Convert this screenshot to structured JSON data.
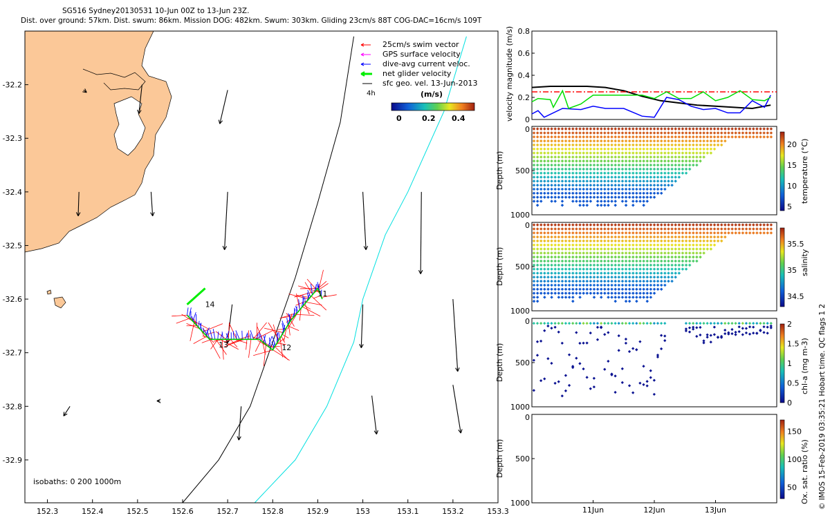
{
  "header": {
    "line1": "SG516 Sydney20130531 10-Jun 00Z to 13-Jun 23Z.",
    "line2": "Dist. over ground: 57km. Dist. swum: 86km. Mission DOG: 482km. Swum: 303km. Gliding 23cm/s 88T COG-DAC=16cm/s 109T"
  },
  "side_note": "© IMOS 15-Feb-2019 03:35:21 Hobart time. QC flags 1  2",
  "colors": {
    "land": "#fbc898",
    "swim": "#ff0000",
    "gps": "#ff00ff",
    "dac": "#0000ff",
    "net": "#00ee00",
    "geo": "#000000",
    "isobath200": "#000000",
    "isobath1000": "#00e0e0"
  },
  "chart_data": [
    {
      "type": "map",
      "xlim": [
        152.25,
        153.3
      ],
      "ylim": [
        -32.98,
        -32.1
      ],
      "xticks": [
        152.3,
        152.4,
        152.5,
        152.6,
        152.7,
        152.8,
        152.9,
        153,
        153.1,
        153.2,
        153.3
      ],
      "xtick_labels": [
        "152.3",
        "152.4",
        "152.5",
        "152.6",
        "152.7",
        "152.8",
        "152.9",
        "153",
        "153.1",
        "153.2",
        "153.3"
      ],
      "yticks": [
        -32.2,
        -32.3,
        -32.4,
        -32.5,
        -32.6,
        -32.7,
        -32.8,
        -32.9
      ],
      "ytick_labels": [
        "-32.2",
        "-32.3",
        "-32.4",
        "-32.5",
        "-32.6",
        "-32.7",
        "-32.8",
        "-32.9"
      ],
      "legend": [
        "25cm/s swim vector",
        "GPS surface velocity",
        "dive-avg current veloc.",
        "net glider velocity",
        "sfc geo. vel. 13-Jun-2013"
      ],
      "legend_extra": "4h",
      "colorbar": {
        "label": "(m/s)",
        "ticks": [
          "0",
          "0.2",
          "0.4"
        ],
        "range": [
          0,
          0.5
        ]
      },
      "isobath_note": "isobaths: 0   200  1000m",
      "track_labels": [
        "14",
        "13",
        "12",
        "11"
      ],
      "track": [
        [
          152.61,
          -32.63
        ],
        [
          152.66,
          -32.675
        ],
        [
          152.72,
          -32.675
        ],
        [
          152.77,
          -32.675
        ],
        [
          152.8,
          -32.695
        ],
        [
          152.84,
          -32.64
        ],
        [
          152.88,
          -32.6
        ],
        [
          152.9,
          -32.58
        ],
        [
          152.91,
          -32.6
        ]
      ],
      "isobath_200": [
        [
          152.98,
          -32.11
        ],
        [
          152.95,
          -32.27
        ],
        [
          152.9,
          -32.42
        ],
        [
          152.85,
          -32.56
        ],
        [
          152.8,
          -32.68
        ],
        [
          152.75,
          -32.8
        ],
        [
          152.68,
          -32.9
        ],
        [
          152.6,
          -32.98
        ]
      ],
      "isobath_1000": [
        [
          153.23,
          -32.11
        ],
        [
          153.18,
          -32.25
        ],
        [
          153.1,
          -32.4
        ],
        [
          153.05,
          -32.48
        ],
        [
          153.0,
          -32.6
        ],
        [
          152.98,
          -32.68
        ],
        [
          152.92,
          -32.8
        ],
        [
          152.85,
          -32.9
        ],
        [
          152.76,
          -32.98
        ]
      ],
      "geo_vectors": [
        [
          152.38,
          -32.21,
          0.02,
          -0.005
        ],
        [
          152.51,
          -32.2,
          -0.02,
          -0.06
        ],
        [
          152.7,
          -32.21,
          -0.05,
          -0.07
        ],
        [
          152.37,
          -32.4,
          -0.005,
          -0.05
        ],
        [
          152.53,
          -32.4,
          0.01,
          -0.05
        ],
        [
          152.7,
          -32.4,
          -0.02,
          -0.12
        ],
        [
          153.0,
          -32.4,
          0.02,
          -0.12
        ],
        [
          153.13,
          -32.4,
          -0.005,
          -0.17
        ],
        [
          152.71,
          -32.61,
          -0.03,
          -0.08
        ],
        [
          153.0,
          -32.61,
          -0.01,
          -0.09
        ],
        [
          153.2,
          -32.6,
          0.03,
          -0.15
        ],
        [
          152.35,
          -32.8,
          -0.04,
          -0.02
        ],
        [
          152.55,
          -32.79,
          -0.02,
          0
        ],
        [
          152.73,
          -32.8,
          -0.015,
          -0.07
        ],
        [
          153.02,
          -32.78,
          0.03,
          -0.08
        ],
        [
          153.2,
          -32.76,
          0.05,
          -0.1
        ]
      ]
    },
    {
      "type": "line",
      "ylabel": "velocity magnitude (m/s)",
      "ylim": [
        0,
        0.8
      ],
      "yticks": [
        "0",
        "0.2",
        "0.4",
        "0.6",
        "0.8"
      ],
      "x_range_days": [
        10,
        14
      ],
      "series": [
        {
          "color": "black",
          "x": [
            10,
            10.3,
            10.6,
            10.9,
            11.2,
            11.5,
            11.8,
            12.1,
            12.4,
            12.7,
            13.0,
            13.3,
            13.6,
            13.9
          ],
          "y": [
            0.29,
            0.3,
            0.3,
            0.3,
            0.29,
            0.26,
            0.21,
            0.17,
            0.15,
            0.13,
            0.12,
            0.11,
            0.1,
            0.13
          ]
        },
        {
          "color": "red",
          "style": "dashed",
          "x": [
            10,
            14
          ],
          "y": [
            0.25,
            0.25
          ]
        },
        {
          "color": "blue",
          "x": [
            10,
            10.1,
            10.2,
            10.5,
            10.8,
            11.0,
            11.2,
            11.5,
            11.8,
            12.0,
            12.2,
            12.4,
            12.6,
            12.8,
            13.0,
            13.2,
            13.4,
            13.6,
            13.8,
            13.9
          ],
          "y": [
            0.05,
            0.08,
            0.02,
            0.1,
            0.09,
            0.12,
            0.1,
            0.1,
            0.03,
            0.02,
            0.2,
            0.18,
            0.12,
            0.09,
            0.1,
            0.06,
            0.06,
            0.17,
            0.11,
            0.22
          ]
        },
        {
          "color": "#00dd00",
          "x": [
            10,
            10.1,
            10.3,
            10.35,
            10.5,
            10.6,
            10.8,
            11.0,
            11.2,
            11.4,
            11.6,
            11.8,
            12.0,
            12.2,
            12.4,
            12.6,
            12.8,
            13.0,
            13.2,
            13.4,
            13.6,
            13.8,
            13.9
          ],
          "y": [
            0.16,
            0.19,
            0.18,
            0.11,
            0.26,
            0.1,
            0.14,
            0.22,
            0.22,
            0.22,
            0.22,
            0.22,
            0.19,
            0.25,
            0.19,
            0.19,
            0.25,
            0.17,
            0.2,
            0.26,
            0.18,
            0.17,
            0.2
          ]
        }
      ]
    },
    {
      "type": "scatter",
      "ylabel": "Depth (m)",
      "ylim": [
        1000,
        0
      ],
      "yticks": [
        "0",
        "500",
        "1000"
      ],
      "cbar_label": "temperature (°C)",
      "cbar_ticks": [
        "5",
        "10",
        "15",
        "20"
      ],
      "cbar_range": [
        4,
        23
      ],
      "palette": "parula"
    },
    {
      "type": "scatter",
      "ylabel": "Depth (m)",
      "ylim": [
        1000,
        0
      ],
      "yticks": [
        "0",
        "500",
        "1000"
      ],
      "cbar_label": "salinity",
      "cbar_ticks": [
        "34.5",
        "35",
        "35.5"
      ],
      "cbar_range": [
        34.3,
        35.8
      ],
      "palette": "parula"
    },
    {
      "type": "scatter",
      "ylabel": "Depth (m)",
      "ylim": [
        1000,
        0
      ],
      "yticks": [
        "0",
        "500",
        "1000"
      ],
      "cbar_label": "chl-a (mg m-3)",
      "cbar_ticks": [
        "0",
        "0.5",
        "1",
        "1.5",
        "2"
      ],
      "cbar_range": [
        0,
        2
      ],
      "palette": "parula"
    },
    {
      "type": "scatter",
      "ylabel": "Depth (m)",
      "ylim": [
        1000,
        0
      ],
      "yticks": [
        "0",
        "500",
        "1000"
      ],
      "cbar_label": "Ox. sat. ratio (%)",
      "cbar_ticks": [
        "50",
        "100",
        "150"
      ],
      "cbar_range": [
        30,
        170
      ],
      "palette": "parula",
      "xticks": [
        "11Jun",
        "12Jun",
        "13Jun"
      ]
    }
  ]
}
